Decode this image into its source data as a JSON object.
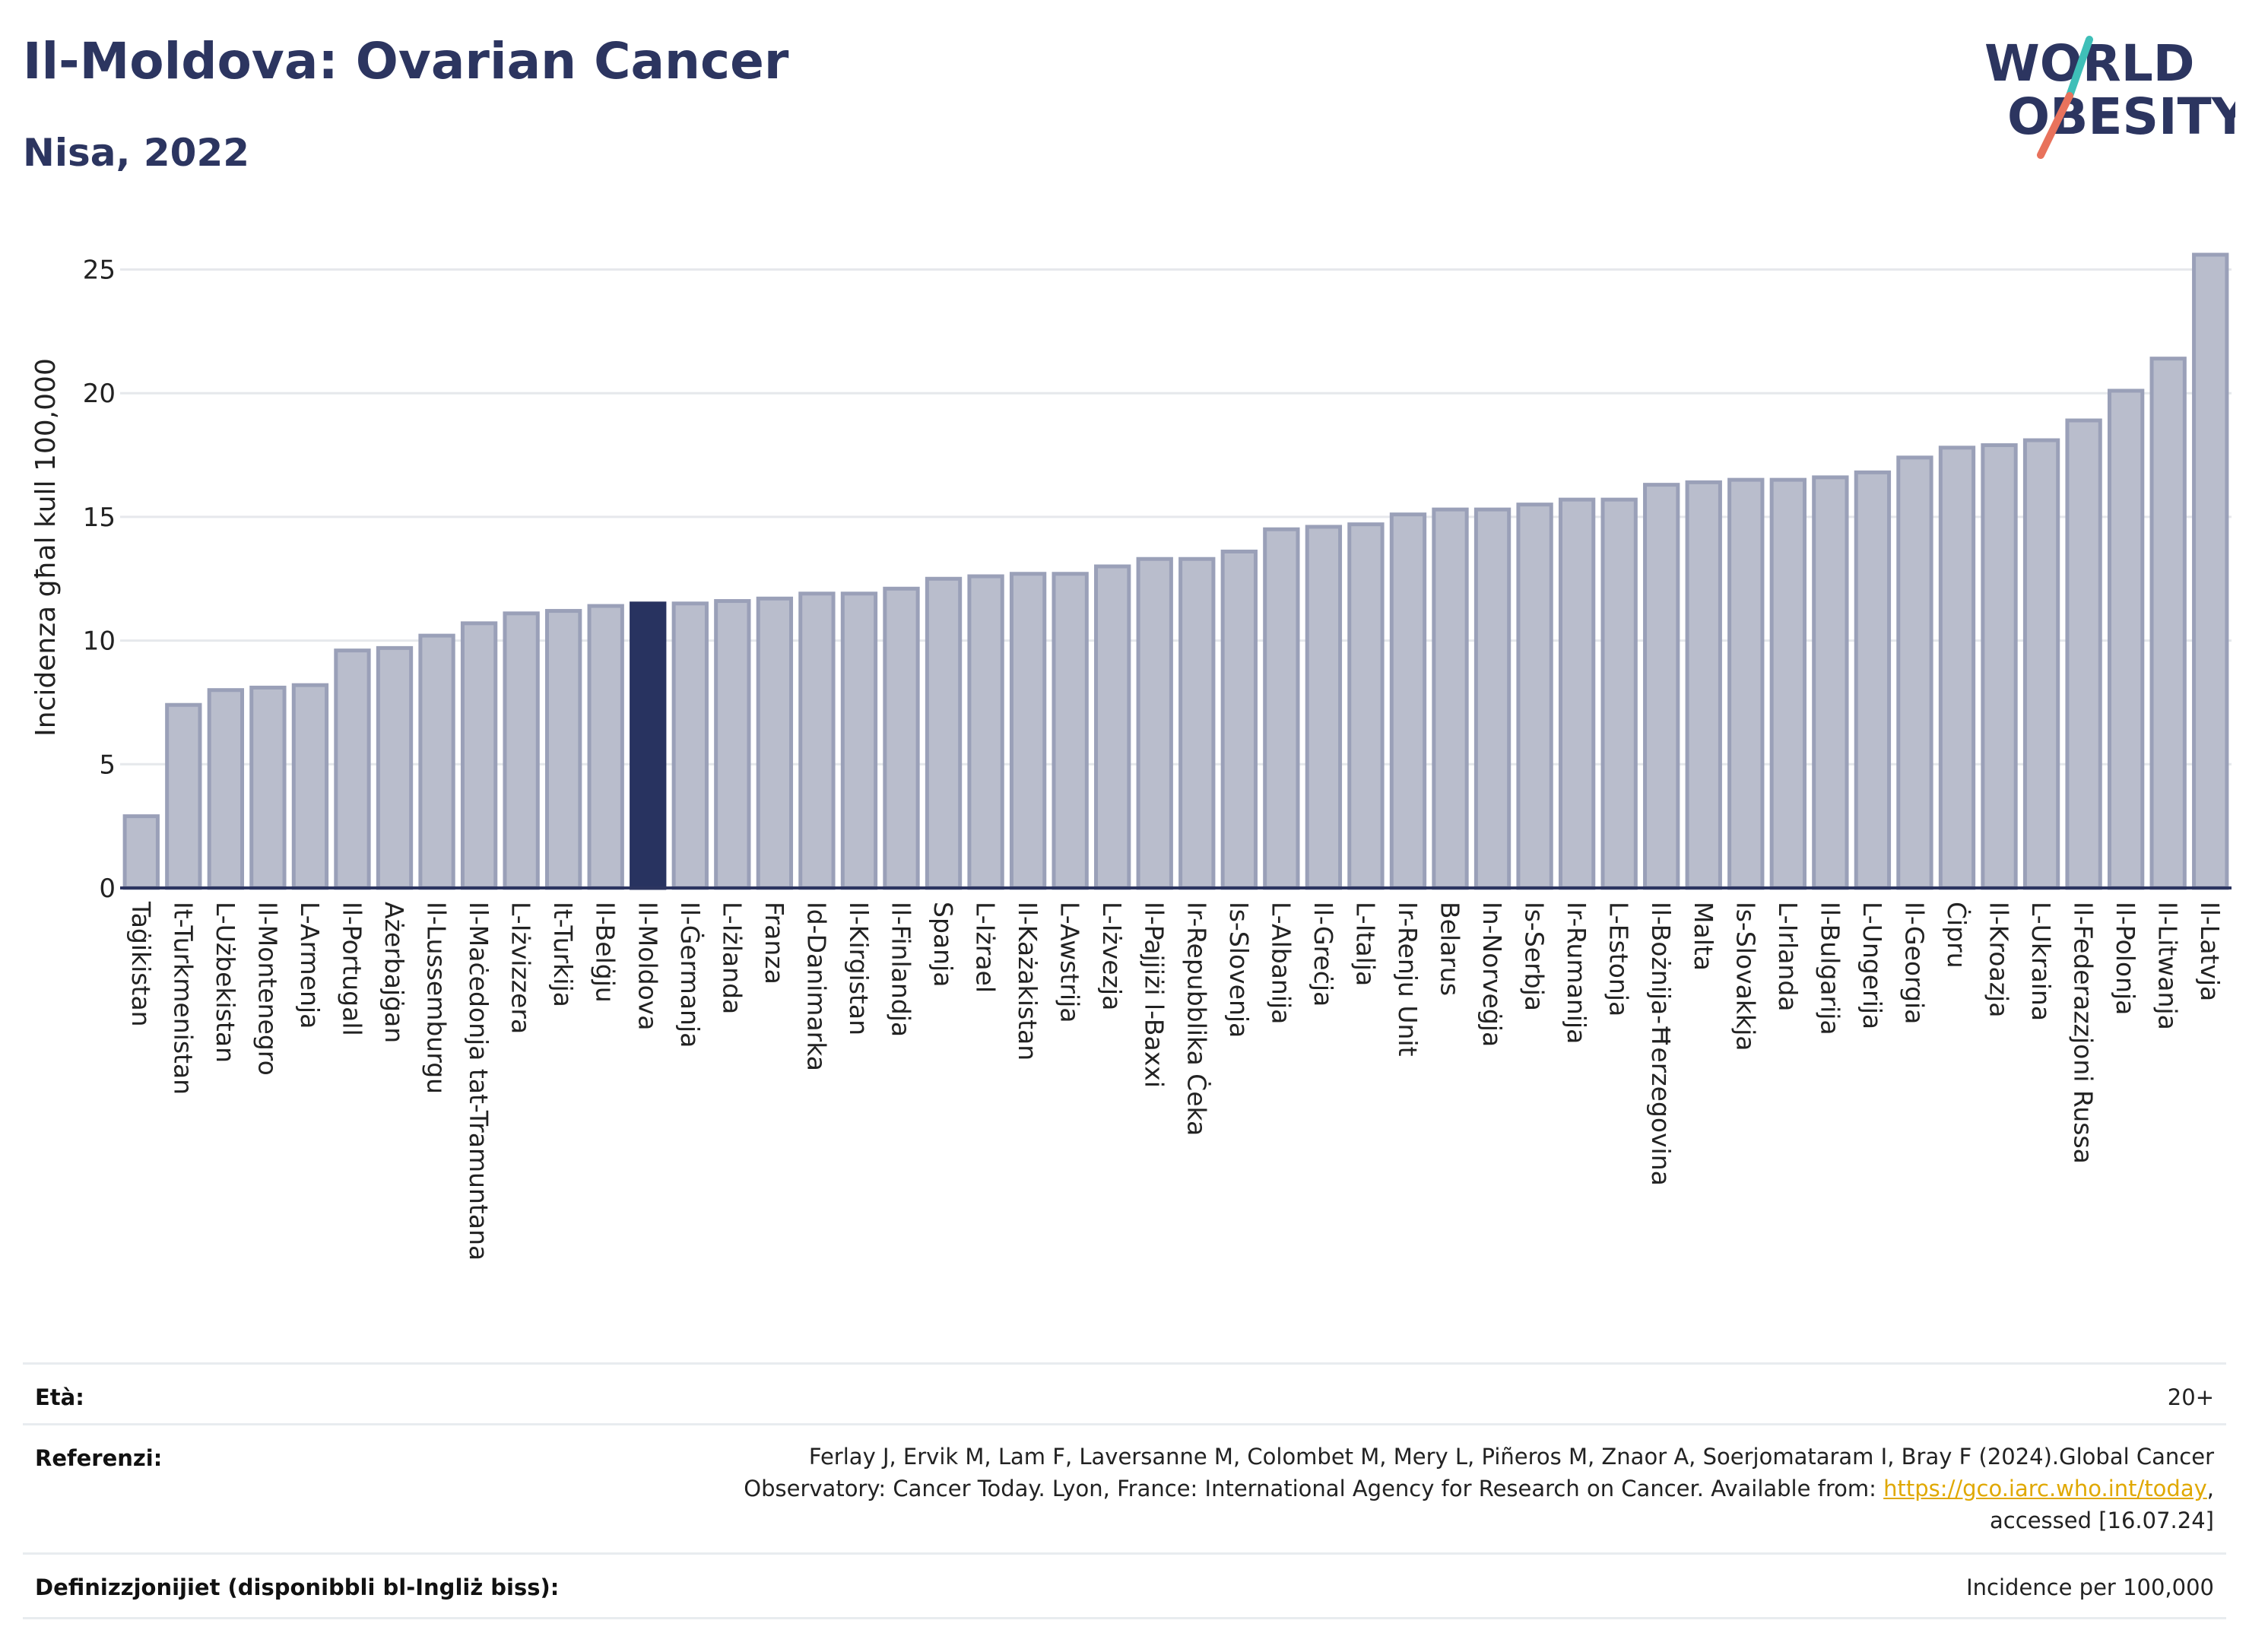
{
  "header": {
    "title": "Il-Moldova: Ovarian Cancer",
    "subtitle": "Nisa, 2022"
  },
  "logo": {
    "line1": "WORLD",
    "line2": "OBESITY",
    "text_color": "#2c3560",
    "slash_colors": [
      "#e8725c",
      "#3fbfb8"
    ]
  },
  "colors": {
    "bar_default": "#b9bdcc",
    "bar_default_stroke": "#9aa0b8",
    "bar_highlight": "#283360",
    "text_dark": "#2c3560",
    "link": "#e0a800"
  },
  "chart_data": {
    "type": "bar",
    "ylabel": "Incidenza għal kull 100,000",
    "ylim": [
      0,
      26
    ],
    "yticks": [
      0,
      5,
      10,
      15,
      20,
      25
    ],
    "grid": true,
    "highlight": "Il-Moldova",
    "categories": [
      "Taġikistan",
      "It-Turkmenistan",
      "L-Użbekistan",
      "Il-Montenegro",
      "L-Armenja",
      "Il-Portugall",
      "Ażerbajġan",
      "Il-Lussemburgu",
      "Il-Maċedonja tat-Tramuntana",
      "L-Iżvizzera",
      "It-Turkija",
      "Il-Belġju",
      "Il-Moldova",
      "Il-Ġermanja",
      "L-Iżlanda",
      "Franza",
      "Id-Danimarka",
      "Il-Kirgistan",
      "Il-Finlandja",
      "Spanja",
      "L-Iżrael",
      "Il-Każakistan",
      "L-Awstrija",
      "L-Iżvezja",
      "Il-Pajjiżi l-Baxxi",
      "Ir-Repubblika Ċeka",
      "Is-Slovenja",
      "L-Albanija",
      "Il-Greċja",
      "L-Italja",
      "Ir-Renju Unit",
      "Belarus",
      "In-Norveġja",
      "Is-Serbja",
      "Ir-Rumanija",
      "L-Estonja",
      "Il-Bożnija-Ħerzegovina",
      "Malta",
      "Is-Slovakkja",
      "L-Irlanda",
      "Il-Bulgarija",
      "L-Ungerija",
      "Il-Georgia",
      "Ċipru",
      "Il-Kroazja",
      "L-Ukraina",
      "Il-Federazzjoni Russa",
      "Il-Polonja",
      "Il-Litwanja",
      "Il-Latvja"
    ],
    "values": [
      2.9,
      7.4,
      8.0,
      8.1,
      8.2,
      9.6,
      9.7,
      10.2,
      10.7,
      11.1,
      11.2,
      11.4,
      11.5,
      11.5,
      11.6,
      11.7,
      11.9,
      11.9,
      12.1,
      12.5,
      12.6,
      12.7,
      12.7,
      13.0,
      13.3,
      13.3,
      13.6,
      14.5,
      14.6,
      14.7,
      15.1,
      15.3,
      15.3,
      15.5,
      15.7,
      15.7,
      16.3,
      16.4,
      16.5,
      16.5,
      16.6,
      16.8,
      17.4,
      17.8,
      17.9,
      18.1,
      18.9,
      20.1,
      21.4,
      25.6
    ]
  },
  "footer": {
    "age_label": "Età:",
    "age_value": "20+",
    "ref_label": "Referenzi:",
    "ref_line1": "Ferlay J, Ervik M, Lam F, Laversanne M, Colombet M, Mery L, Piñeros M, Znaor A, Soerjomataram I, Bray F (2024).Global Cancer",
    "ref_line2_pre": "Observatory: Cancer Today. Lyon, France: International Agency for Research on Cancer. Available from: ",
    "ref_link": "https://gco.iarc.who.int/today",
    "ref_line2_post": ",",
    "ref_line3": "accessed [16.07.24]",
    "def_label": "Definizzjonijiet (disponibbli bl-Ingliż biss):",
    "def_value": "Incidence per 100,000"
  }
}
